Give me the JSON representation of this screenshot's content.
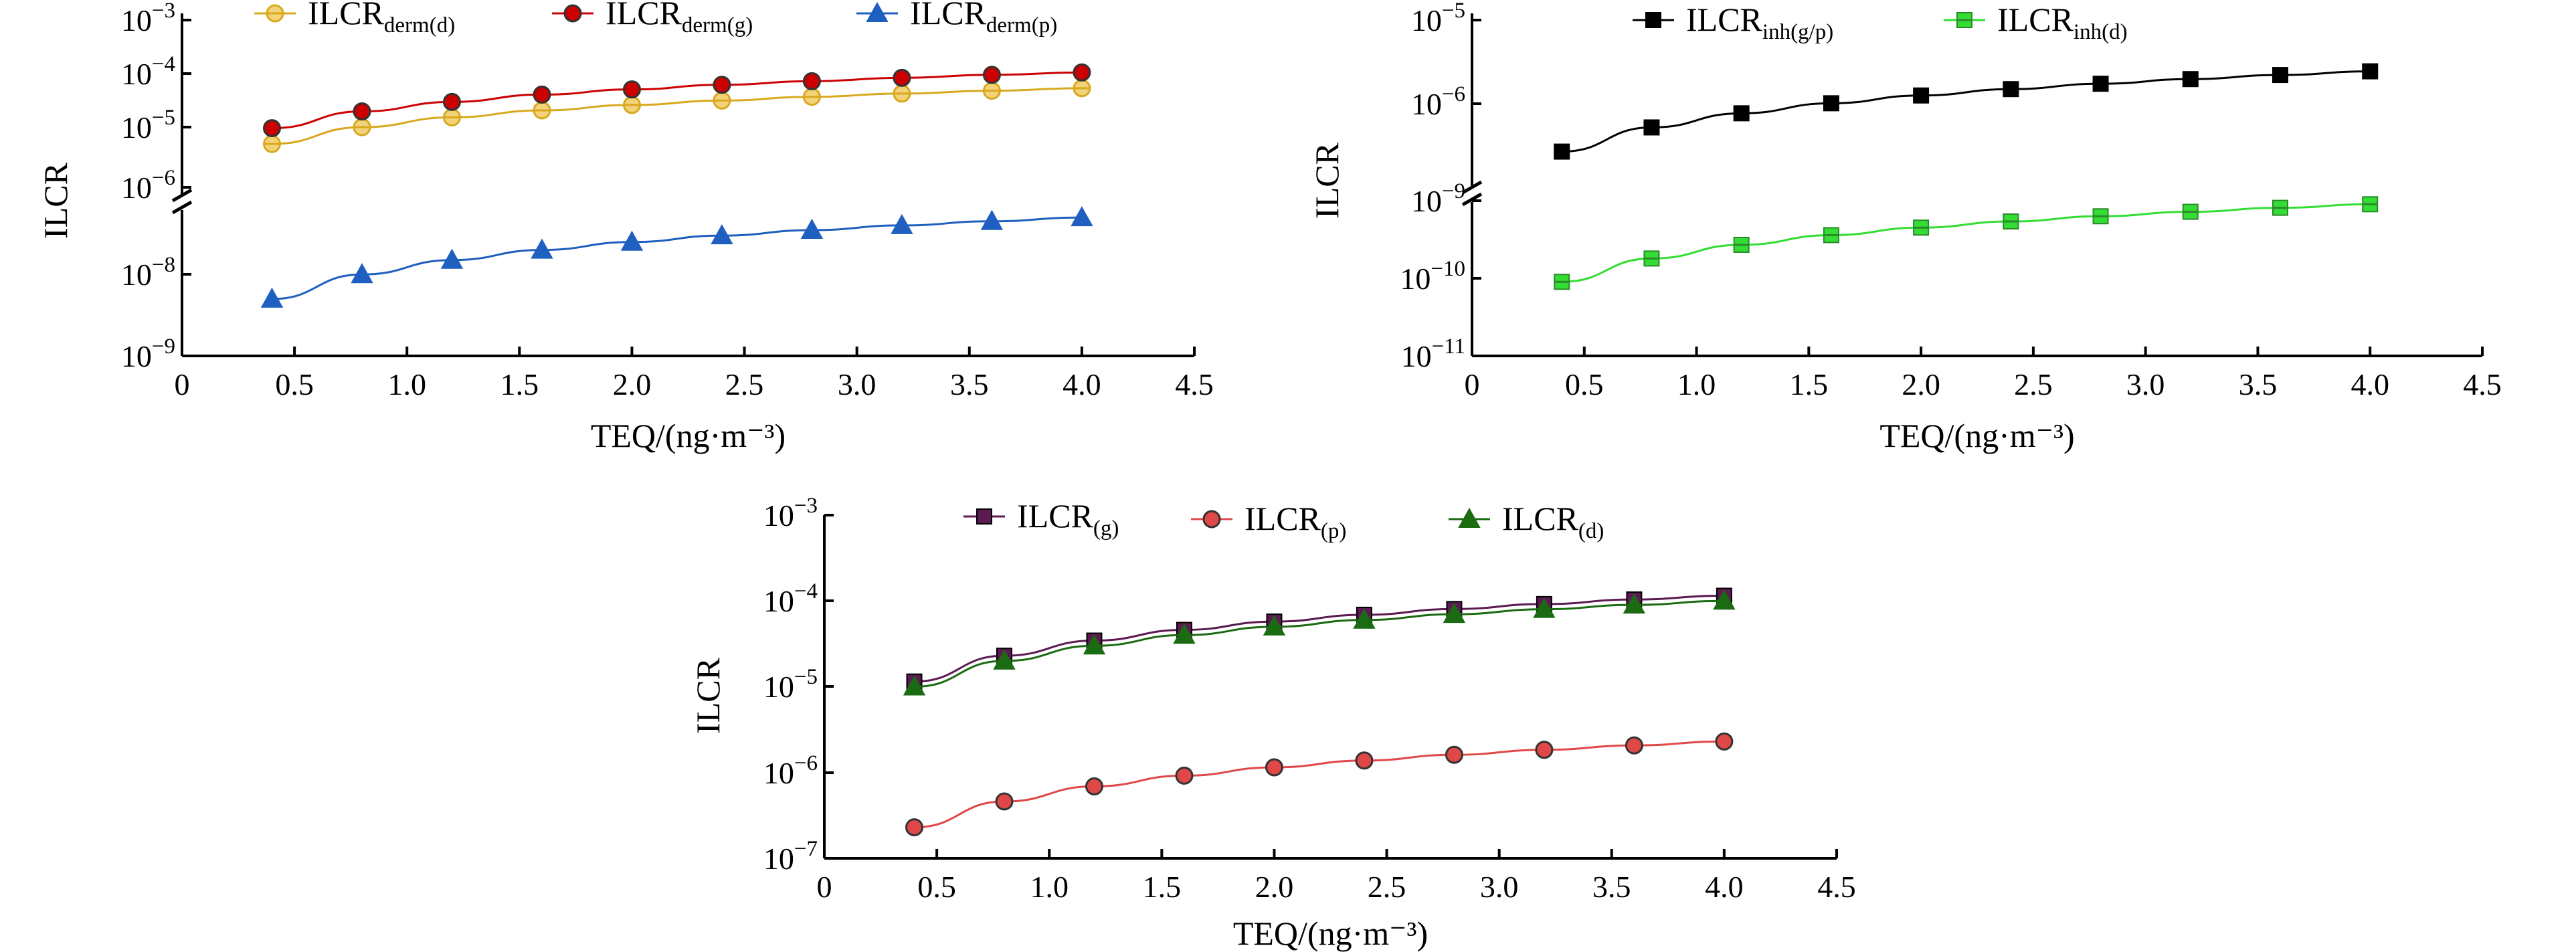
{
  "colors": {
    "derm_d": "#d8a81e",
    "derm_g": "#cc0000",
    "derm_p": "#1f5fbf",
    "inh_gp": "#000000",
    "inh_d": "#33dd33",
    "total_g": "#5b1a52",
    "total_p": "#e04848",
    "total_d": "#1b6b12"
  },
  "chart_data": [
    {
      "type": "line",
      "xlabel": "TEQ/(ng·m⁻³)",
      "ylabel": "ILCR",
      "xlim": [
        0,
        4.5
      ],
      "x_ticks": [
        "0",
        "0.5",
        "1.0",
        "1.5",
        "2.0",
        "2.5",
        "3.0",
        "3.5",
        "4.0",
        "4.5"
      ],
      "y_scale": "log",
      "y_axis_break": "between 1e-6 and 1e-7",
      "y_tick_labels": [
        {
          "base": "10",
          "exp": "−3"
        },
        {
          "base": "10",
          "exp": "−4"
        },
        {
          "base": "10",
          "exp": "−5"
        },
        {
          "base": "10",
          "exp": "−6"
        },
        {
          "base": "10",
          "exp": "−8"
        },
        {
          "base": "10",
          "exp": "−9"
        }
      ],
      "legend_position": "top",
      "x": [
        0.4,
        0.8,
        1.2,
        1.6,
        2.0,
        2.4,
        2.8,
        3.2,
        3.6,
        4.0
      ],
      "series": [
        {
          "key": "derm_d",
          "name": "ILCR",
          "name_sub": "derm(d)",
          "marker": "circle-open",
          "values": [
            6e-06,
            1.2e-05,
            1.8e-05,
            2.4e-05,
            3e-05,
            3.6e-05,
            4.2e-05,
            4.8e-05,
            5.4e-05,
            6e-05
          ]
        },
        {
          "key": "derm_g",
          "name": "ILCR",
          "name_sub": "derm(g)",
          "marker": "circle",
          "values": [
            1.15e-05,
            2.3e-05,
            3.4e-05,
            4.6e-05,
            5.7e-05,
            6.9e-05,
            8e-05,
            9.2e-05,
            0.000104,
            0.000115
          ]
        },
        {
          "key": "derm_p",
          "name": "ILCR",
          "name_sub": "derm(p)",
          "marker": "triangle",
          "values": [
            5e-09,
            1e-08,
            1.5e-08,
            2e-08,
            2.5e-08,
            3e-08,
            3.5e-08,
            4e-08,
            4.5e-08,
            5e-08
          ]
        }
      ]
    },
    {
      "type": "line",
      "xlabel": "TEQ/(ng·m⁻³)",
      "ylabel": "ILCR",
      "xlim": [
        0,
        4.5
      ],
      "x_ticks": [
        "0",
        "0.5",
        "1.0",
        "1.5",
        "2.0",
        "2.5",
        "3.0",
        "3.5",
        "4.0",
        "4.5"
      ],
      "y_scale": "log",
      "y_axis_break": "between 1e-9 and 1e-7",
      "y_tick_labels": [
        {
          "base": "10",
          "exp": "−5"
        },
        {
          "base": "10",
          "exp": "−6"
        },
        {
          "base": "10",
          "exp": "−9"
        },
        {
          "base": "10",
          "exp": "−10"
        },
        {
          "base": "10",
          "exp": "−11"
        }
      ],
      "legend_position": "top",
      "x": [
        0.4,
        0.8,
        1.2,
        1.6,
        2.0,
        2.4,
        2.8,
        3.2,
        3.6,
        4.0
      ],
      "series": [
        {
          "key": "inh_gp",
          "name": "ILCR",
          "name_sub": "inh(g/p)",
          "marker": "square",
          "values": [
            2.3e-07,
            4.6e-07,
            6.9e-07,
            9.2e-07,
            1.15e-06,
            1.38e-06,
            1.61e-06,
            1.84e-06,
            2.07e-06,
            2.3e-06
          ]
        },
        {
          "key": "inh_d",
          "name": "ILCR",
          "name_sub": "inh(d)",
          "marker": "square-open",
          "values": [
            9e-11,
            1.8e-10,
            2.7e-10,
            3.6e-10,
            4.5e-10,
            5.4e-10,
            6.3e-10,
            7.2e-10,
            8.1e-10,
            9e-10
          ]
        }
      ]
    },
    {
      "type": "line",
      "xlabel": "TEQ/(ng·m⁻³)",
      "ylabel": "ILCR",
      "xlim": [
        0,
        4.5
      ],
      "x_ticks": [
        "0",
        "0.5",
        "1.0",
        "1.5",
        "2.0",
        "2.5",
        "3.0",
        "3.5",
        "4.0",
        "4.5"
      ],
      "y_scale": "log",
      "ylim": [
        1e-07,
        0.001
      ],
      "y_tick_labels": [
        {
          "base": "10",
          "exp": "−3"
        },
        {
          "base": "10",
          "exp": "−4"
        },
        {
          "base": "10",
          "exp": "−5"
        },
        {
          "base": "10",
          "exp": "−6"
        },
        {
          "base": "10",
          "exp": "−7"
        }
      ],
      "legend_position": "top",
      "x": [
        0.4,
        0.8,
        1.2,
        1.6,
        2.0,
        2.4,
        2.8,
        3.2,
        3.6,
        4.0
      ],
      "series": [
        {
          "key": "total_g",
          "name": "ILCR",
          "name_sub": "(g)",
          "marker": "square",
          "values": [
            1.15e-05,
            2.3e-05,
            3.45e-05,
            4.6e-05,
            5.75e-05,
            6.9e-05,
            8.05e-05,
            9.2e-05,
            0.000104,
            0.000115
          ]
        },
        {
          "key": "total_p",
          "name": "ILCR",
          "name_sub": "(p)",
          "marker": "circle",
          "values": [
            2.3e-07,
            4.6e-07,
            6.9e-07,
            9.2e-07,
            1.15e-06,
            1.38e-06,
            1.61e-06,
            1.84e-06,
            2.07e-06,
            2.3e-06
          ]
        },
        {
          "key": "total_d",
          "name": "ILCR",
          "name_sub": "(d)",
          "marker": "triangle",
          "values": [
            1e-05,
            2e-05,
            3e-05,
            4e-05,
            5e-05,
            6e-05,
            7e-05,
            8e-05,
            9e-05,
            0.0001
          ]
        }
      ]
    }
  ]
}
